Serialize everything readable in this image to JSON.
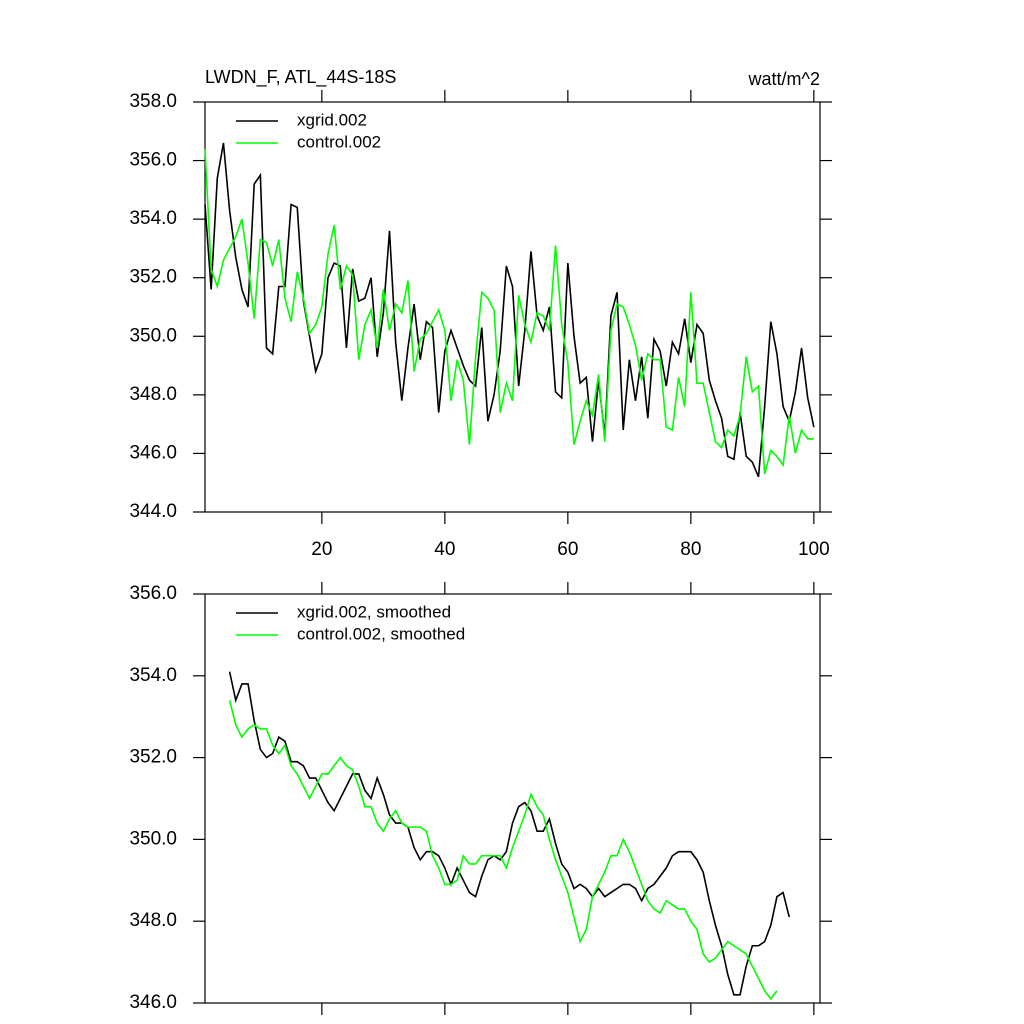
{
  "chart_data": [
    {
      "type": "line",
      "title": "LWDN_F, ATL_44S-18S",
      "units_label": "watt/m^2",
      "legend": "top-left",
      "x": [
        1,
        2,
        3,
        4,
        5,
        6,
        7,
        8,
        9,
        10,
        11,
        12,
        13,
        14,
        15,
        16,
        17,
        18,
        19,
        20,
        21,
        22,
        23,
        24,
        25,
        26,
        27,
        28,
        29,
        30,
        31,
        32,
        33,
        34,
        35,
        36,
        37,
        38,
        39,
        40,
        41,
        42,
        43,
        44,
        45,
        46,
        47,
        48,
        49,
        50,
        51,
        52,
        53,
        54,
        55,
        56,
        57,
        58,
        59,
        60,
        61,
        62,
        63,
        64,
        65,
        66,
        67,
        68,
        69,
        70,
        71,
        72,
        73,
        74,
        75,
        76,
        77,
        78,
        79,
        80,
        81,
        82,
        83,
        84,
        85,
        86,
        87,
        88,
        89,
        90,
        91,
        92,
        93,
        94,
        95,
        96,
        97,
        98,
        99,
        100
      ],
      "xlim": [
        1,
        101
      ],
      "xticks": [
        20,
        40,
        60,
        80,
        100
      ],
      "ylim": [
        344,
        358
      ],
      "yticks": [
        {
          "value": 344,
          "label": "344.0"
        },
        {
          "value": 346,
          "label": "346.0"
        },
        {
          "value": 348,
          "label": "348.0"
        },
        {
          "value": 350,
          "label": "350.0"
        },
        {
          "value": 352,
          "label": "352.0"
        },
        {
          "value": 354,
          "label": "354.0"
        },
        {
          "value": 356,
          "label": "356.0"
        },
        {
          "value": 358,
          "label": "358.0"
        }
      ],
      "series": [
        {
          "name": "xgrid.002",
          "color": "#000000",
          "values": [
            354.5,
            351.6,
            355.4,
            356.6,
            354.3,
            352.7,
            351.6,
            351.0,
            355.2,
            355.5,
            349.6,
            349.4,
            351.7,
            351.7,
            354.5,
            354.4,
            351.2,
            350.0,
            348.8,
            349.4,
            352.0,
            352.5,
            352.4,
            349.6,
            352.3,
            351.2,
            351.3,
            352.0,
            349.3,
            350.8,
            353.6,
            349.8,
            347.8,
            349.6,
            351.1,
            349.2,
            350.5,
            350.3,
            347.4,
            349.5,
            350.2,
            349.6,
            349.0,
            348.5,
            348.3,
            350.3,
            347.1,
            348.0,
            349.5,
            352.4,
            351.7,
            348.3,
            350.2,
            352.9,
            350.7,
            350.2,
            351.0,
            348.1,
            347.9,
            352.5,
            350.0,
            348.4,
            348.6,
            346.4,
            348.5,
            346.6,
            350.7,
            351.5,
            346.8,
            349.2,
            347.8,
            349.3,
            347.2,
            349.9,
            349.5,
            348.3,
            349.8,
            349.4,
            350.6,
            349.1,
            350.4,
            350.1,
            348.5,
            347.8,
            347.2,
            345.9,
            345.8,
            347.4,
            345.9,
            345.7,
            345.2,
            347.6,
            350.5,
            349.4,
            347.6,
            347.1,
            348.1,
            349.6,
            347.9,
            346.9
          ]
        },
        {
          "name": "control.002",
          "color": "#00ff00",
          "values": [
            356.4,
            352.3,
            351.7,
            352.6,
            353.0,
            353.4,
            354.0,
            352.5,
            350.6,
            353.3,
            353.2,
            352.4,
            353.3,
            351.3,
            350.5,
            352.2,
            351.3,
            350.1,
            350.4,
            351.0,
            352.8,
            353.8,
            351.6,
            352.4,
            352.1,
            349.2,
            350.4,
            350.9,
            349.6,
            351.6,
            350.2,
            351.1,
            350.8,
            351.9,
            348.8,
            349.9,
            350.1,
            350.5,
            350.9,
            350.2,
            347.8,
            349.2,
            348.5,
            346.3,
            349.3,
            351.5,
            351.3,
            350.9,
            347.4,
            348.4,
            347.8,
            351.4,
            350.4,
            349.8,
            350.8,
            350.7,
            350.2,
            353.1,
            350.4,
            349.1,
            346.3,
            347.1,
            347.8,
            347.3,
            348.7,
            346.4,
            350.2,
            351.1,
            351.0,
            350.4,
            349.7,
            348.5,
            349.4,
            349.2,
            349.2,
            346.9,
            346.8,
            348.6,
            347.6,
            351.5,
            348.4,
            348.4,
            347.4,
            346.4,
            346.2,
            346.8,
            346.6,
            347.3,
            349.3,
            348.1,
            348.3,
            345.3,
            346.1,
            345.9,
            345.6,
            347.3,
            346.0,
            346.8,
            346.5,
            346.5
          ]
        }
      ]
    },
    {
      "type": "line",
      "legend": "top-left",
      "x": [
        1,
        2,
        3,
        4,
        5,
        6,
        7,
        8,
        9,
        10,
        11,
        12,
        13,
        14,
        15,
        16,
        17,
        18,
        19,
        20,
        21,
        22,
        23,
        24,
        25,
        26,
        27,
        28,
        29,
        30,
        31,
        32,
        33,
        34,
        35,
        36,
        37,
        38,
        39,
        40,
        41,
        42,
        43,
        44,
        45,
        46,
        47,
        48,
        49,
        50,
        51,
        52,
        53,
        54,
        55,
        56,
        57,
        58,
        59,
        60,
        61,
        62,
        63,
        64,
        65,
        66,
        67,
        68,
        69,
        70,
        71,
        72,
        73,
        74,
        75,
        76,
        77,
        78,
        79,
        80,
        81,
        82,
        83,
        84,
        85,
        86,
        87,
        88,
        89,
        90,
        91,
        92,
        93,
        94,
        95,
        96,
        97,
        98,
        99,
        100
      ],
      "xlim": [
        1,
        101
      ],
      "xticks": [
        20,
        40,
        60,
        80,
        100
      ],
      "ylim": [
        346,
        356
      ],
      "yticks": [
        {
          "value": 346,
          "label": "346.0"
        },
        {
          "value": 348,
          "label": "348.0"
        },
        {
          "value": 350,
          "label": "350.0"
        },
        {
          "value": 352,
          "label": "352.0"
        },
        {
          "value": 354,
          "label": "354.0"
        },
        {
          "value": 356,
          "label": "356.0"
        }
      ],
      "series": [
        {
          "name": "xgrid.002, smoothed",
          "color": "#000000",
          "values": [
            null,
            null,
            null,
            null,
            354.1,
            353.4,
            353.8,
            353.8,
            352.9,
            352.2,
            352.0,
            352.1,
            352.5,
            352.4,
            351.9,
            351.9,
            351.8,
            351.5,
            351.5,
            351.2,
            350.9,
            350.7,
            351.0,
            351.3,
            351.6,
            351.6,
            351.2,
            351.0,
            351.5,
            351.1,
            350.6,
            350.4,
            350.4,
            350.3,
            349.8,
            349.5,
            349.7,
            349.7,
            349.6,
            349.3,
            348.9,
            349.3,
            349.0,
            348.7,
            348.6,
            349.1,
            349.5,
            349.6,
            349.5,
            349.7,
            350.4,
            350.8,
            350.9,
            350.7,
            350.2,
            350.2,
            350.5,
            349.9,
            349.4,
            349.2,
            348.8,
            348.9,
            348.8,
            348.6,
            348.8,
            348.6,
            348.7,
            348.8,
            348.9,
            348.9,
            348.8,
            348.5,
            348.8,
            348.9,
            349.1,
            349.3,
            349.6,
            349.7,
            349.7,
            349.7,
            349.5,
            349.2,
            348.5,
            347.9,
            347.4,
            346.7,
            346.2,
            346.2,
            346.9,
            347.4,
            347.4,
            347.5,
            347.9,
            348.6,
            348.7,
            348.1,
            null,
            null,
            null,
            null
          ]
        },
        {
          "name": "control.002, smoothed",
          "color": "#00ff00",
          "values": [
            null,
            null,
            null,
            null,
            353.4,
            352.8,
            352.5,
            352.7,
            352.8,
            352.7,
            352.7,
            352.3,
            352.1,
            352.3,
            351.8,
            351.6,
            351.3,
            351.0,
            351.3,
            351.6,
            351.6,
            351.8,
            352.0,
            351.8,
            351.7,
            351.3,
            350.8,
            350.8,
            350.4,
            350.2,
            350.5,
            350.7,
            350.4,
            350.3,
            350.3,
            350.3,
            350.2,
            349.6,
            349.3,
            348.9,
            348.9,
            349.0,
            349.6,
            349.4,
            349.4,
            349.6,
            349.6,
            349.6,
            349.6,
            349.3,
            349.8,
            350.2,
            350.6,
            351.1,
            350.8,
            350.6,
            350.0,
            349.5,
            349.1,
            348.7,
            348.1,
            347.5,
            347.8,
            348.6,
            348.9,
            349.2,
            349.6,
            349.6,
            350.0,
            349.7,
            349.3,
            348.9,
            348.5,
            348.3,
            348.2,
            348.5,
            348.4,
            348.3,
            348.3,
            348.0,
            347.8,
            347.2,
            347.0,
            347.1,
            347.3,
            347.5,
            347.4,
            347.3,
            347.2,
            346.9,
            346.6,
            346.3,
            346.1,
            346.3,
            null,
            null,
            null,
            null,
            null,
            null
          ]
        }
      ]
    }
  ]
}
